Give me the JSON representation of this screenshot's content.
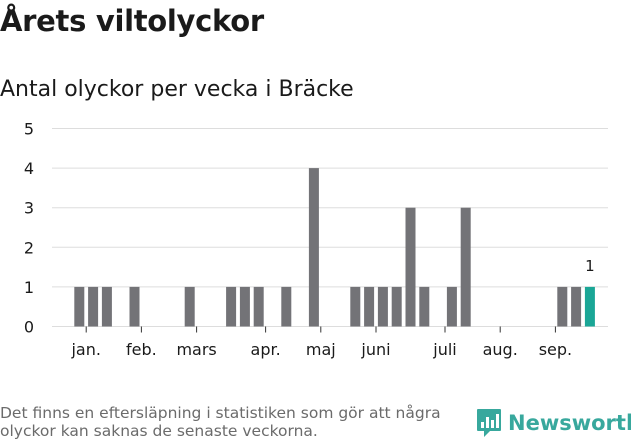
{
  "header": {
    "title": "Årets viltolyckor",
    "subtitle": "Antal olyckor per vecka i Bräcke"
  },
  "footer": {
    "note": "Det finns en eftersläpning i statistiken som gör att några olyckor kan saknas de senaste veckorna.",
    "brand": "Newsworthy"
  },
  "colors": {
    "bar": "#737377",
    "highlight": "#1aa696",
    "grid": "#dddddd",
    "brand": "#38a89d"
  },
  "icons": {
    "brand": "speech-bubble-chart-icon"
  },
  "chart_data": {
    "type": "bar",
    "title": "Antal olyckor per vecka i Bräcke",
    "x_label": "",
    "y_label": "",
    "x": [
      1,
      2,
      3,
      4,
      5,
      6,
      7,
      8,
      9,
      10,
      11,
      12,
      13,
      14,
      15,
      16,
      17,
      18,
      19,
      20,
      21,
      22,
      23,
      24,
      25,
      26,
      27,
      28,
      29,
      30,
      31,
      32,
      33,
      34,
      35,
      36,
      37,
      38
    ],
    "values": [
      1,
      1,
      1,
      0,
      1,
      0,
      0,
      0,
      1,
      0,
      0,
      1,
      1,
      1,
      0,
      1,
      0,
      4,
      0,
      0,
      1,
      1,
      1,
      1,
      3,
      1,
      0,
      1,
      3,
      0,
      0,
      0,
      0,
      0,
      0,
      1,
      1,
      1
    ],
    "highlight_index": 37,
    "highlight_label": "1",
    "ylim": [
      0,
      5
    ],
    "yticks": [
      "0",
      "1",
      "2",
      "3",
      "4",
      "5"
    ],
    "month_ticks": [
      {
        "label": "jan.",
        "week": 1.5
      },
      {
        "label": "feb.",
        "week": 5.5
      },
      {
        "label": "mars",
        "week": 9.5
      },
      {
        "label": "apr.",
        "week": 14.5
      },
      {
        "label": "maj",
        "week": 18.5
      },
      {
        "label": "juni",
        "week": 22.5
      },
      {
        "label": "juli",
        "week": 27.5
      },
      {
        "label": "aug.",
        "week": 31.5
      },
      {
        "label": "sep.",
        "week": 35.5
      }
    ],
    "grid": true
  }
}
